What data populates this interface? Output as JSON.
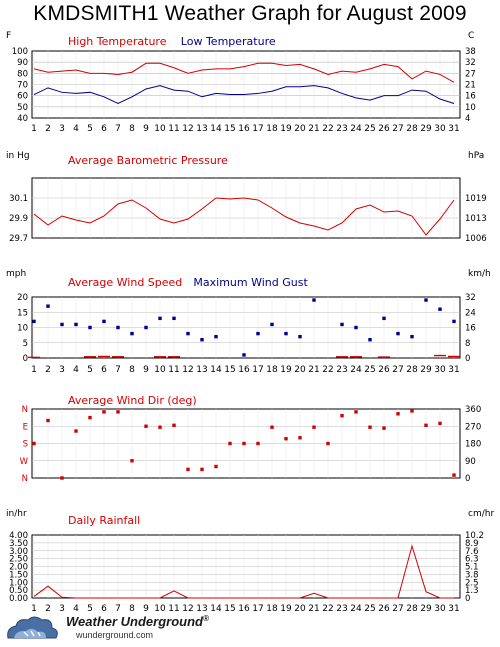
{
  "title": "KMDSMITH1 Weather Graph for August 2009",
  "logo": {
    "brand": "Weather Underground",
    "registered": "®",
    "site": "wunderground.com"
  },
  "colors": {
    "red": "#d40000",
    "blue": "#00008b",
    "grid": "#bbbbbb",
    "axis": "#000000"
  },
  "chart_data": [
    {
      "type": "line",
      "title": "",
      "legend": [
        "High Temperature",
        "Low Temperature"
      ],
      "left_unit": "F",
      "right_unit": "C",
      "x": [
        1,
        2,
        3,
        4,
        5,
        6,
        7,
        8,
        9,
        10,
        11,
        12,
        13,
        14,
        15,
        16,
        17,
        18,
        19,
        20,
        21,
        22,
        23,
        24,
        25,
        26,
        27,
        28,
        29,
        30,
        31
      ],
      "ylim": [
        40,
        100
      ],
      "left_ticks": [
        40,
        50,
        60,
        70,
        80,
        90,
        100
      ],
      "right_ticks": [
        4,
        10,
        16,
        21,
        27,
        32,
        38
      ],
      "series": [
        {
          "name": "High Temperature",
          "color": "#d40000",
          "values": [
            84,
            81,
            82,
            83,
            80,
            80,
            79,
            81,
            89,
            89,
            85,
            80,
            83,
            84,
            84,
            86,
            89,
            89,
            87,
            88,
            84,
            79,
            82,
            81,
            84,
            88,
            86,
            75,
            82,
            79,
            72
          ]
        },
        {
          "name": "Low Temperature",
          "color": "#00008b",
          "values": [
            61,
            67,
            63,
            62,
            63,
            59,
            53,
            59,
            66,
            69,
            65,
            64,
            59,
            62,
            61,
            61,
            62,
            64,
            68,
            68,
            69,
            67,
            62,
            58,
            56,
            60,
            60,
            65,
            64,
            57,
            53
          ]
        }
      ]
    },
    {
      "type": "line",
      "legend": [
        "Average Barometric Pressure"
      ],
      "left_unit": "in Hg",
      "right_unit": "hPa",
      "x": [
        1,
        2,
        3,
        4,
        5,
        6,
        7,
        8,
        9,
        10,
        11,
        12,
        13,
        14,
        15,
        16,
        17,
        18,
        19,
        20,
        21,
        22,
        23,
        24,
        25,
        26,
        27,
        28,
        29,
        30,
        31
      ],
      "ylim": [
        29.7,
        30.3
      ],
      "left_ticks": [
        "29.7",
        "29.9",
        "30.1"
      ],
      "left_tick_values": [
        29.7,
        29.9,
        30.1
      ],
      "right_ticks": [
        "1006",
        "1013",
        "1019"
      ],
      "series": [
        {
          "name": "Average Barometric Pressure",
          "color": "#d40000",
          "values": [
            29.94,
            29.83,
            29.92,
            29.88,
            29.85,
            29.92,
            30.04,
            30.08,
            30.0,
            29.89,
            29.85,
            29.89,
            29.99,
            30.1,
            30.09,
            30.1,
            30.08,
            30.0,
            29.91,
            29.85,
            29.82,
            29.78,
            29.85,
            29.99,
            30.03,
            29.96,
            29.97,
            29.92,
            29.73,
            29.89,
            30.08
          ]
        }
      ]
    },
    {
      "type": "scatter",
      "legend": [
        "Average Wind Speed",
        "Maximum Wind Gust"
      ],
      "left_unit": "mph",
      "right_unit": "km/h",
      "x": [
        1,
        2,
        3,
        4,
        5,
        6,
        7,
        8,
        9,
        10,
        11,
        12,
        13,
        14,
        15,
        16,
        17,
        18,
        19,
        20,
        21,
        22,
        23,
        24,
        25,
        26,
        27,
        28,
        29,
        30,
        31
      ],
      "ylim": [
        0,
        20
      ],
      "left_ticks": [
        0,
        5,
        10,
        15,
        20
      ],
      "right_ticks": [
        0,
        8,
        16,
        24,
        32
      ],
      "series": [
        {
          "name": "Average Wind Speed",
          "color": "#d40000",
          "values": [
            0.2,
            0,
            0,
            0,
            0.4,
            0.5,
            0.4,
            0,
            0,
            0.4,
            0.4,
            0,
            0,
            0,
            0,
            0,
            0,
            0,
            0,
            0,
            0,
            0,
            0.4,
            0.4,
            0,
            0.3,
            0,
            0,
            0,
            0.8,
            0.5
          ]
        },
        {
          "name": "Maximum Wind Gust",
          "color": "#00008b",
          "values": [
            12,
            17,
            11,
            11,
            10,
            12,
            10,
            8,
            10,
            13,
            13,
            8,
            6,
            7,
            null,
            1,
            8,
            11,
            8,
            7,
            19,
            null,
            11,
            10,
            6,
            13,
            8,
            7,
            19,
            16,
            12
          ]
        }
      ]
    },
    {
      "type": "scatter",
      "legend": [
        "Average Wind Dir (deg)"
      ],
      "left_ticks": [
        "N",
        "W",
        "S",
        "E",
        "N"
      ],
      "right_ticks": [
        0,
        90,
        180,
        270,
        360
      ],
      "x": [
        1,
        2,
        3,
        4,
        5,
        6,
        7,
        8,
        9,
        10,
        11,
        12,
        13,
        14,
        15,
        16,
        17,
        18,
        19,
        20,
        21,
        22,
        23,
        24,
        25,
        26,
        27,
        28,
        29,
        30,
        31
      ],
      "ylim": [
        0,
        360
      ],
      "series": [
        {
          "name": "Average Wind Dir (deg)",
          "color": "#d40000",
          "values": [
            180,
            300,
            0,
            245,
            315,
            345,
            345,
            90,
            270,
            265,
            275,
            45,
            45,
            60,
            180,
            180,
            180,
            265,
            205,
            210,
            265,
            180,
            325,
            345,
            265,
            260,
            335,
            350,
            275,
            285,
            15
          ]
        }
      ]
    },
    {
      "type": "line",
      "legend": [
        "Daily Rainfall"
      ],
      "left_unit": "in/hr",
      "right_unit": "cm/hr",
      "x": [
        1,
        2,
        3,
        4,
        5,
        6,
        7,
        8,
        9,
        10,
        11,
        12,
        13,
        14,
        15,
        16,
        17,
        18,
        19,
        20,
        21,
        22,
        23,
        24,
        25,
        26,
        27,
        28,
        29,
        30,
        31
      ],
      "ylim": [
        0,
        4
      ],
      "left_ticks": [
        "0.00",
        "0.50",
        "1.00",
        "1.50",
        "2.00",
        "2.50",
        "3.00",
        "3.50",
        "4.00"
      ],
      "right_ticks": [
        "0",
        "1.3",
        "2.5",
        "3.8",
        "5.1",
        "6.3",
        "7.6",
        "8.9",
        "10.2"
      ],
      "series": [
        {
          "name": "Daily Rainfall",
          "color": "#d40000",
          "values": [
            0.1,
            0.75,
            0.05,
            0,
            0,
            0,
            0,
            0,
            0,
            0,
            0.45,
            0,
            0,
            0,
            0,
            0,
            0,
            0,
            0,
            0,
            0.3,
            0,
            0,
            0,
            0,
            0,
            0,
            3.3,
            0.4,
            0,
            0
          ]
        }
      ]
    }
  ]
}
